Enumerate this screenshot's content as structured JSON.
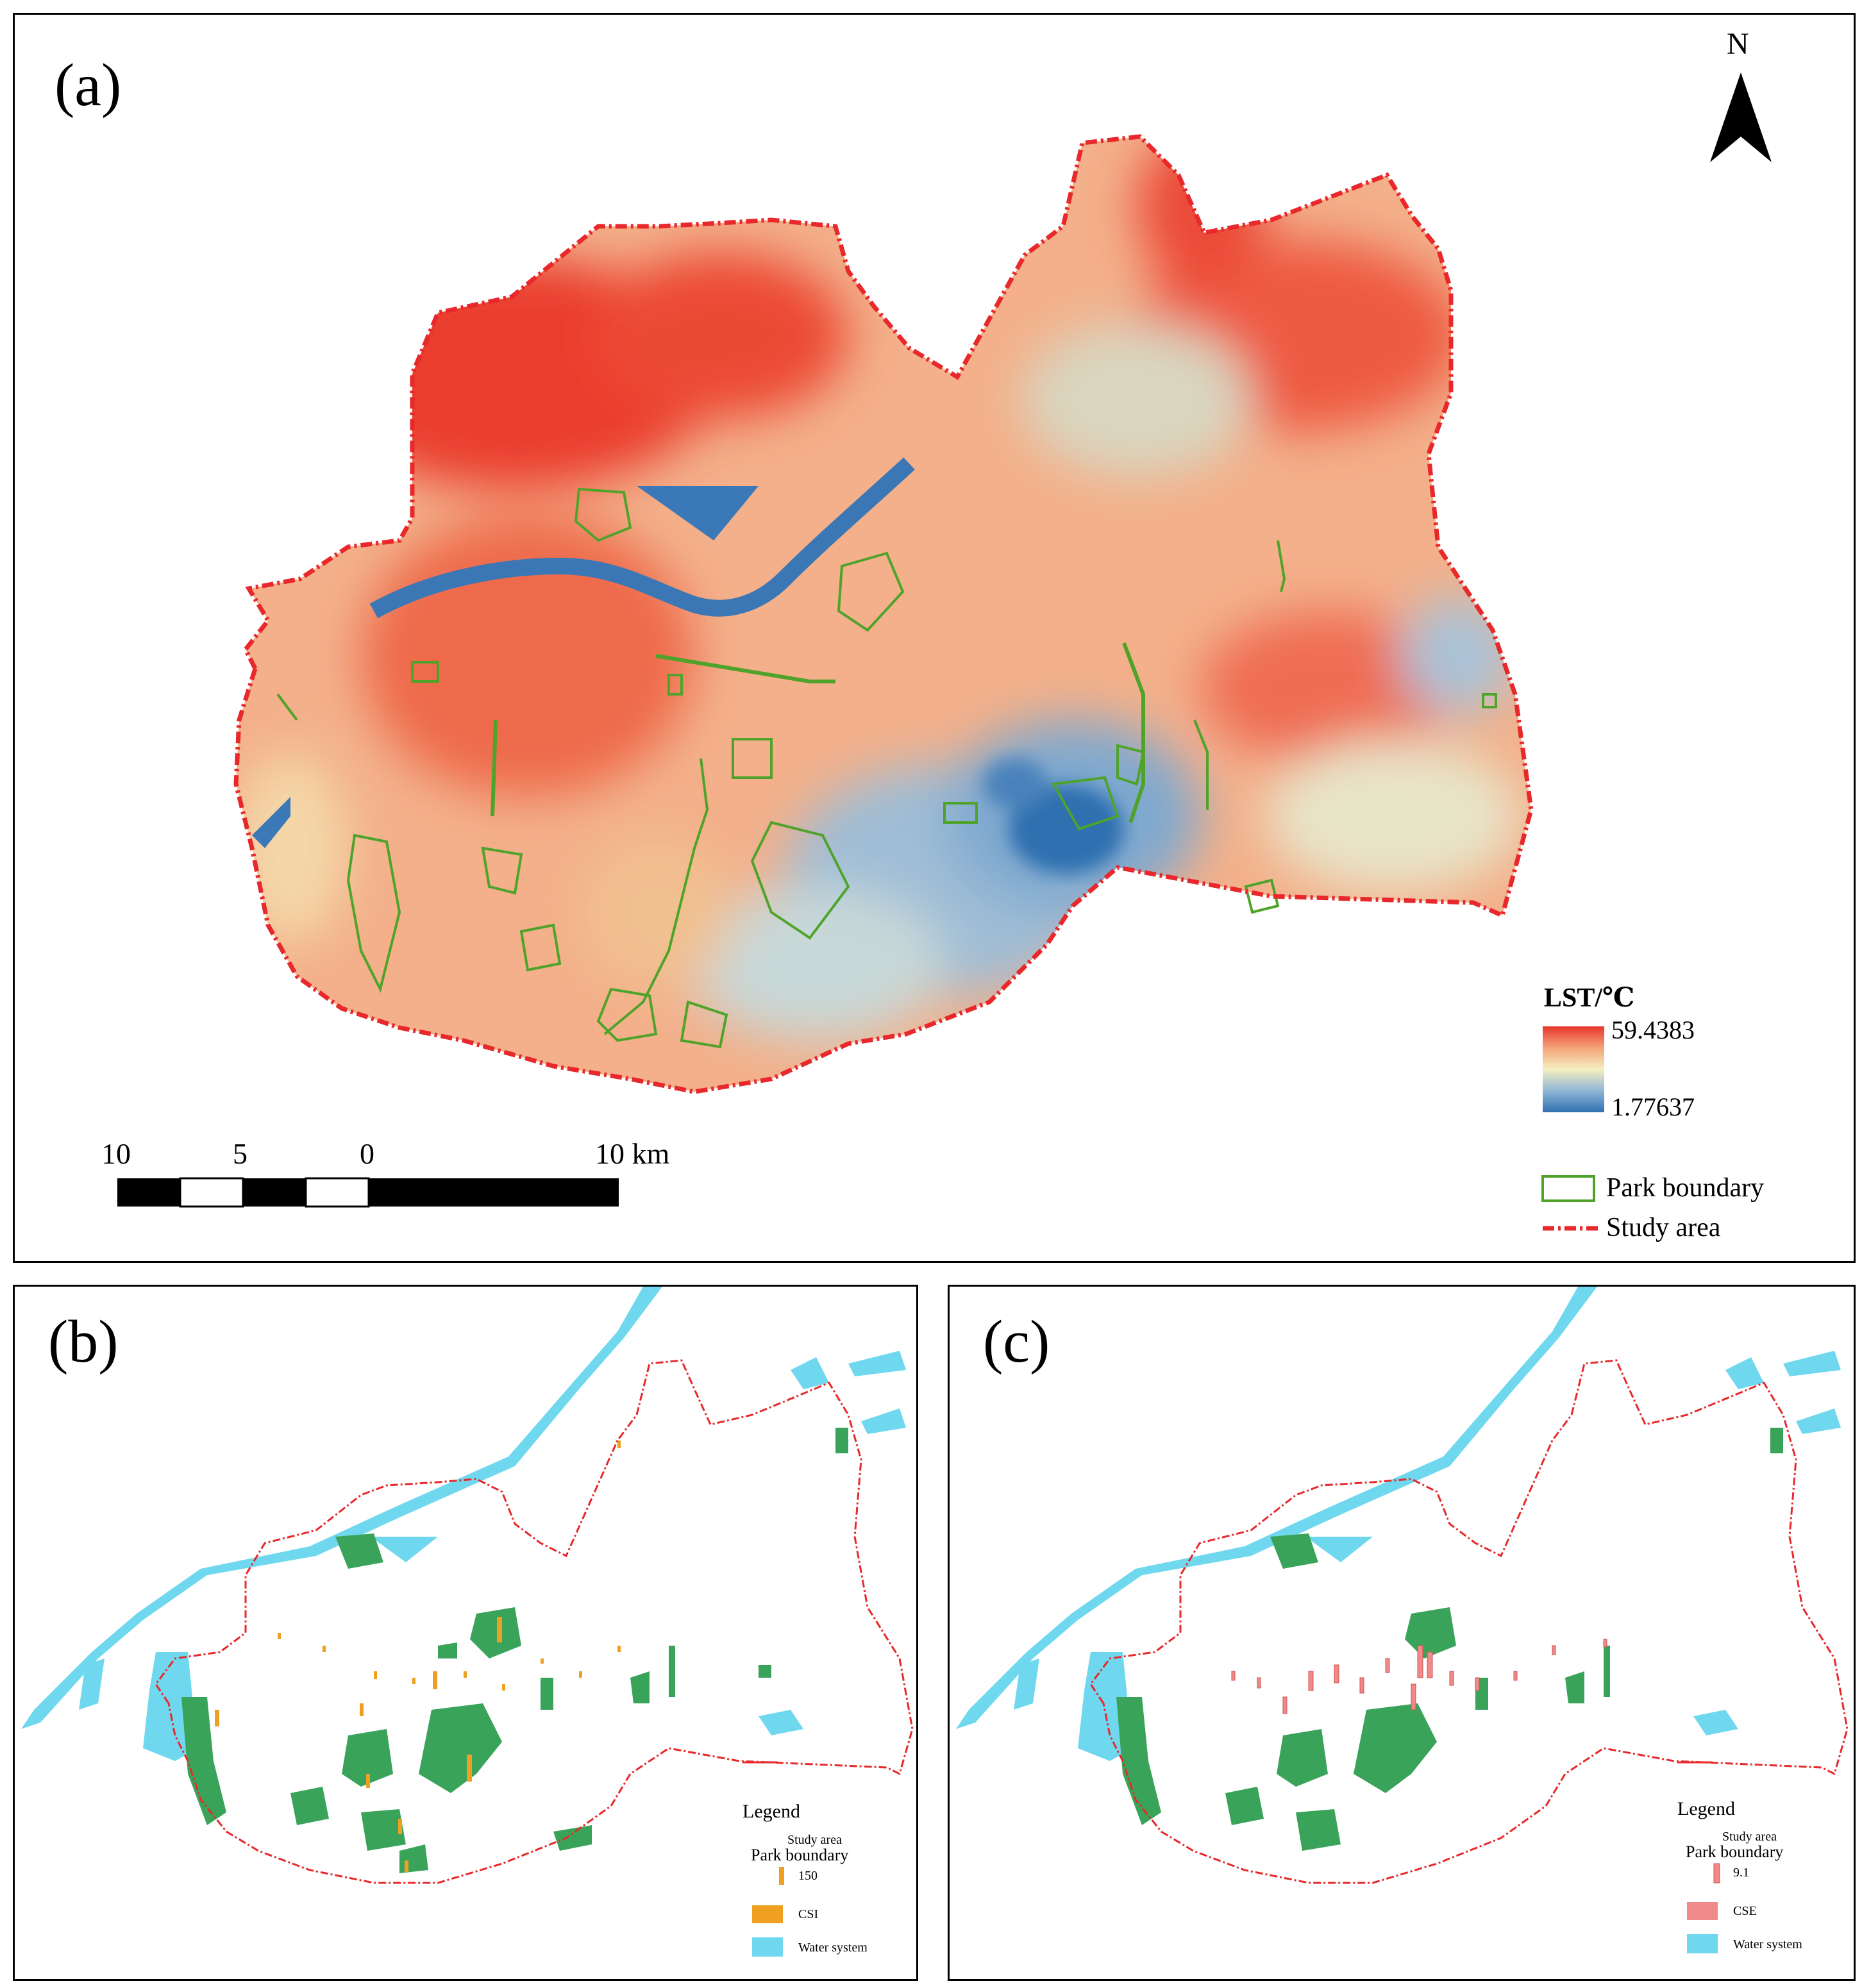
{
  "panels": {
    "a": {
      "label": "(a)",
      "north": "N",
      "lst_title": "LST/℃",
      "lst_max": "59.4383",
      "lst_min": "1.77637",
      "scale": [
        "10",
        "5",
        "0",
        "10 km"
      ],
      "legend": {
        "park": "Park boundary",
        "study": "Study area"
      }
    },
    "b": {
      "label": "(b)",
      "legend_title": "Legend",
      "study": "Study area",
      "park": "Park boundary",
      "bar_value": "150",
      "index": "CSI",
      "water": "Water system"
    },
    "c": {
      "label": "(c)",
      "legend_title": "Legend",
      "study": "Study area",
      "park": "Park boundary",
      "bar_value": "9.1",
      "index": "CSE",
      "water": "Water system"
    }
  },
  "colors": {
    "hot": "#e8362b",
    "warm": "#f4a37a",
    "mid": "#f5efc0",
    "cool": "#8fb6d6",
    "cold": "#2f6fb0",
    "park": "#4fa32a",
    "study": "#e8282a",
    "water": "#6fd8ef",
    "green": "#3aa35a",
    "csi": "#f0a020",
    "cse": "#f08a8a"
  }
}
